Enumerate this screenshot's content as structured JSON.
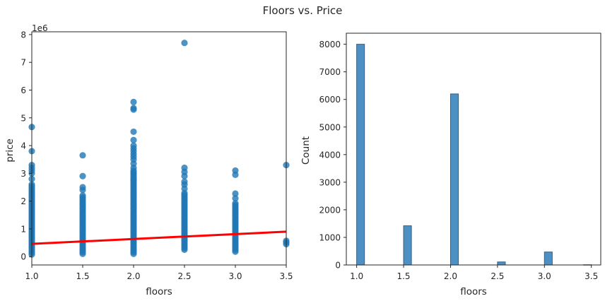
{
  "figure": {
    "title": "Floors vs. Price"
  },
  "chart_data": [
    {
      "type": "scatter",
      "xlabel": "floors",
      "ylabel": "price",
      "y_offset_label": "1e6",
      "xlim": [
        1.0,
        3.5
      ],
      "ylim": [
        -0.3,
        8.1
      ],
      "y_scale_factor": 1000000,
      "xticks": [
        1.0,
        1.5,
        2.0,
        2.5,
        3.0,
        3.5
      ],
      "xtick_labels": [
        "1.0",
        "1.5",
        "2.0",
        "2.5",
        "3.0",
        "3.5"
      ],
      "yticks": [
        0,
        1,
        2,
        3,
        4,
        5,
        6,
        7,
        8
      ],
      "ytick_labels": [
        "0",
        "1",
        "2",
        "3",
        "4",
        "5",
        "6",
        "7",
        "8"
      ],
      "grid": false,
      "point_color": "#1f77b4",
      "regression_color": "#ff0000",
      "regression_line": {
        "x": [
          1.0,
          3.5
        ],
        "y": [
          0.46,
          0.9
        ]
      },
      "columns": [
        {
          "x": 1.0,
          "y_min": 0.08,
          "y_max": 2.6,
          "outliers": [
            2.8,
            3.0,
            3.1,
            3.2,
            3.3,
            3.8,
            4.67
          ]
        },
        {
          "x": 1.5,
          "y_min": 0.1,
          "y_max": 2.25,
          "outliers": [
            2.4,
            2.5,
            2.9,
            3.65
          ]
        },
        {
          "x": 2.0,
          "y_min": 0.1,
          "y_max": 3.1,
          "outliers": [
            3.2,
            3.35,
            3.5,
            3.6,
            3.7,
            3.8,
            3.9,
            4.0,
            4.2,
            4.5,
            5.3,
            5.35,
            5.57
          ]
        },
        {
          "x": 2.5,
          "y_min": 0.25,
          "y_max": 2.3,
          "outliers": [
            2.45,
            2.6,
            2.7,
            2.9,
            3.05,
            3.2,
            7.7
          ]
        },
        {
          "x": 3.0,
          "y_min": 0.18,
          "y_max": 1.95,
          "outliers": [
            2.1,
            2.27,
            2.95,
            3.1
          ]
        },
        {
          "x": 3.5,
          "y_min": 0.45,
          "y_max": 0.6,
          "outliers": [
            3.3
          ]
        }
      ]
    },
    {
      "type": "bar",
      "xlabel": "floors",
      "ylabel": "Count",
      "xlim": [
        0.89,
        3.6
      ],
      "ylim": [
        0,
        8400
      ],
      "xticks": [
        1.0,
        1.5,
        2.0,
        2.5,
        3.0,
        3.5
      ],
      "xtick_labels": [
        "1.0",
        "1.5",
        "2.0",
        "2.5",
        "3.0",
        "3.5"
      ],
      "yticks": [
        0,
        1000,
        2000,
        3000,
        4000,
        5000,
        6000,
        7000,
        8000
      ],
      "ytick_labels": [
        "0",
        "1000",
        "2000",
        "3000",
        "4000",
        "5000",
        "6000",
        "7000",
        "8000"
      ],
      "bar_color": "#4c90c4",
      "bar_edge_color": "#3a5f80",
      "bin_width": 0.0833,
      "categories": [
        "1.0",
        "1.5",
        "2.0",
        "2.5",
        "3.0",
        "3.5"
      ],
      "bin_centers": [
        1.0417,
        1.5417,
        2.0417,
        2.5417,
        3.0417,
        3.4583
      ],
      "values": [
        8000,
        1420,
        6200,
        110,
        470,
        8
      ]
    }
  ]
}
